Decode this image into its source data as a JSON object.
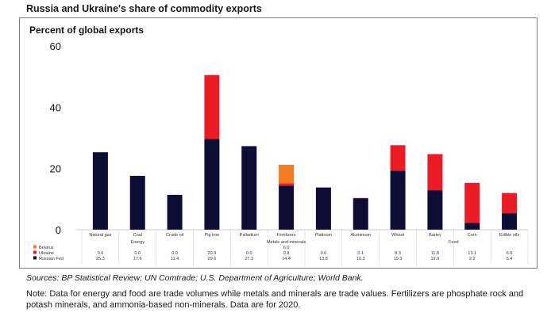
{
  "title": "Russia and Ukraine's share of commodity exports",
  "chart_data": {
    "type": "bar",
    "stacked": true,
    "ylabel": "Percent of global exports",
    "ylim": [
      0,
      60
    ],
    "yticks": [
      "0",
      "20",
      "40",
      "60"
    ],
    "categories": [
      "Natural gas",
      "Coal",
      "Crude oil",
      "Pig iron",
      "Palladium",
      "Fertilizers",
      "Platinum",
      "Aluminium",
      "Wheat",
      "Barley",
      "Corn",
      "Edible oils"
    ],
    "groups": [
      {
        "name": "Energy",
        "start": 0,
        "end": 2
      },
      {
        "name": "Metals and minerals",
        "start": 3,
        "end": 7
      },
      {
        "name": "Food",
        "start": 8,
        "end": 11
      }
    ],
    "series": [
      {
        "name": "Russian Fed",
        "color": "#0d0d35",
        "values": [
          25.3,
          17.6,
          11.4,
          29.6,
          27.3,
          14.4,
          13.8,
          10.3,
          19.3,
          12.9,
          2.2,
          5.4
        ]
      },
      {
        "name": "Ukraine",
        "color": "#ec1c24",
        "values": [
          0.0,
          0.0,
          0.0,
          20.9,
          0.0,
          0.8,
          0.0,
          0.1,
          8.3,
          11.8,
          13.1,
          6.6
        ]
      },
      {
        "name": "Belarus",
        "color": "#f47b20",
        "values": [
          0.0,
          0.0,
          0.0,
          0.0,
          0.0,
          6.0,
          0.0,
          0.0,
          0.0,
          0.0,
          0.0,
          0.0
        ]
      }
    ],
    "table_rows": [
      {
        "label": "Belarus",
        "values": [
          "",
          "",
          "",
          "",
          "",
          "6.0",
          "",
          "",
          "",
          "",
          "",
          ""
        ]
      },
      {
        "label": "Ukraine",
        "values": [
          "0.0",
          "0.0",
          "0.0",
          "20.9",
          "0.0",
          "0.8",
          "0.0",
          "0.1",
          "8.3",
          "11.8",
          "13.1",
          "6.6"
        ]
      },
      {
        "label": "Russian Fed",
        "values": [
          "25.3",
          "17.6",
          "11.4",
          "29.6",
          "27.3",
          "14.4",
          "13.8",
          "10.3",
          "19.3",
          "12.9",
          "2.2",
          "5.4"
        ]
      }
    ]
  },
  "sources": "Sources: BP Statistical Review; UN Comtrade; U.S. Department of Agriculture; World Bank.",
  "note": "Note: Data for energy and food are trade volumes while metals and minerals are trade values. Fertilizers are phosphate rock and potash minerals, and ammonia-based non-minerals. Data are for 2020."
}
